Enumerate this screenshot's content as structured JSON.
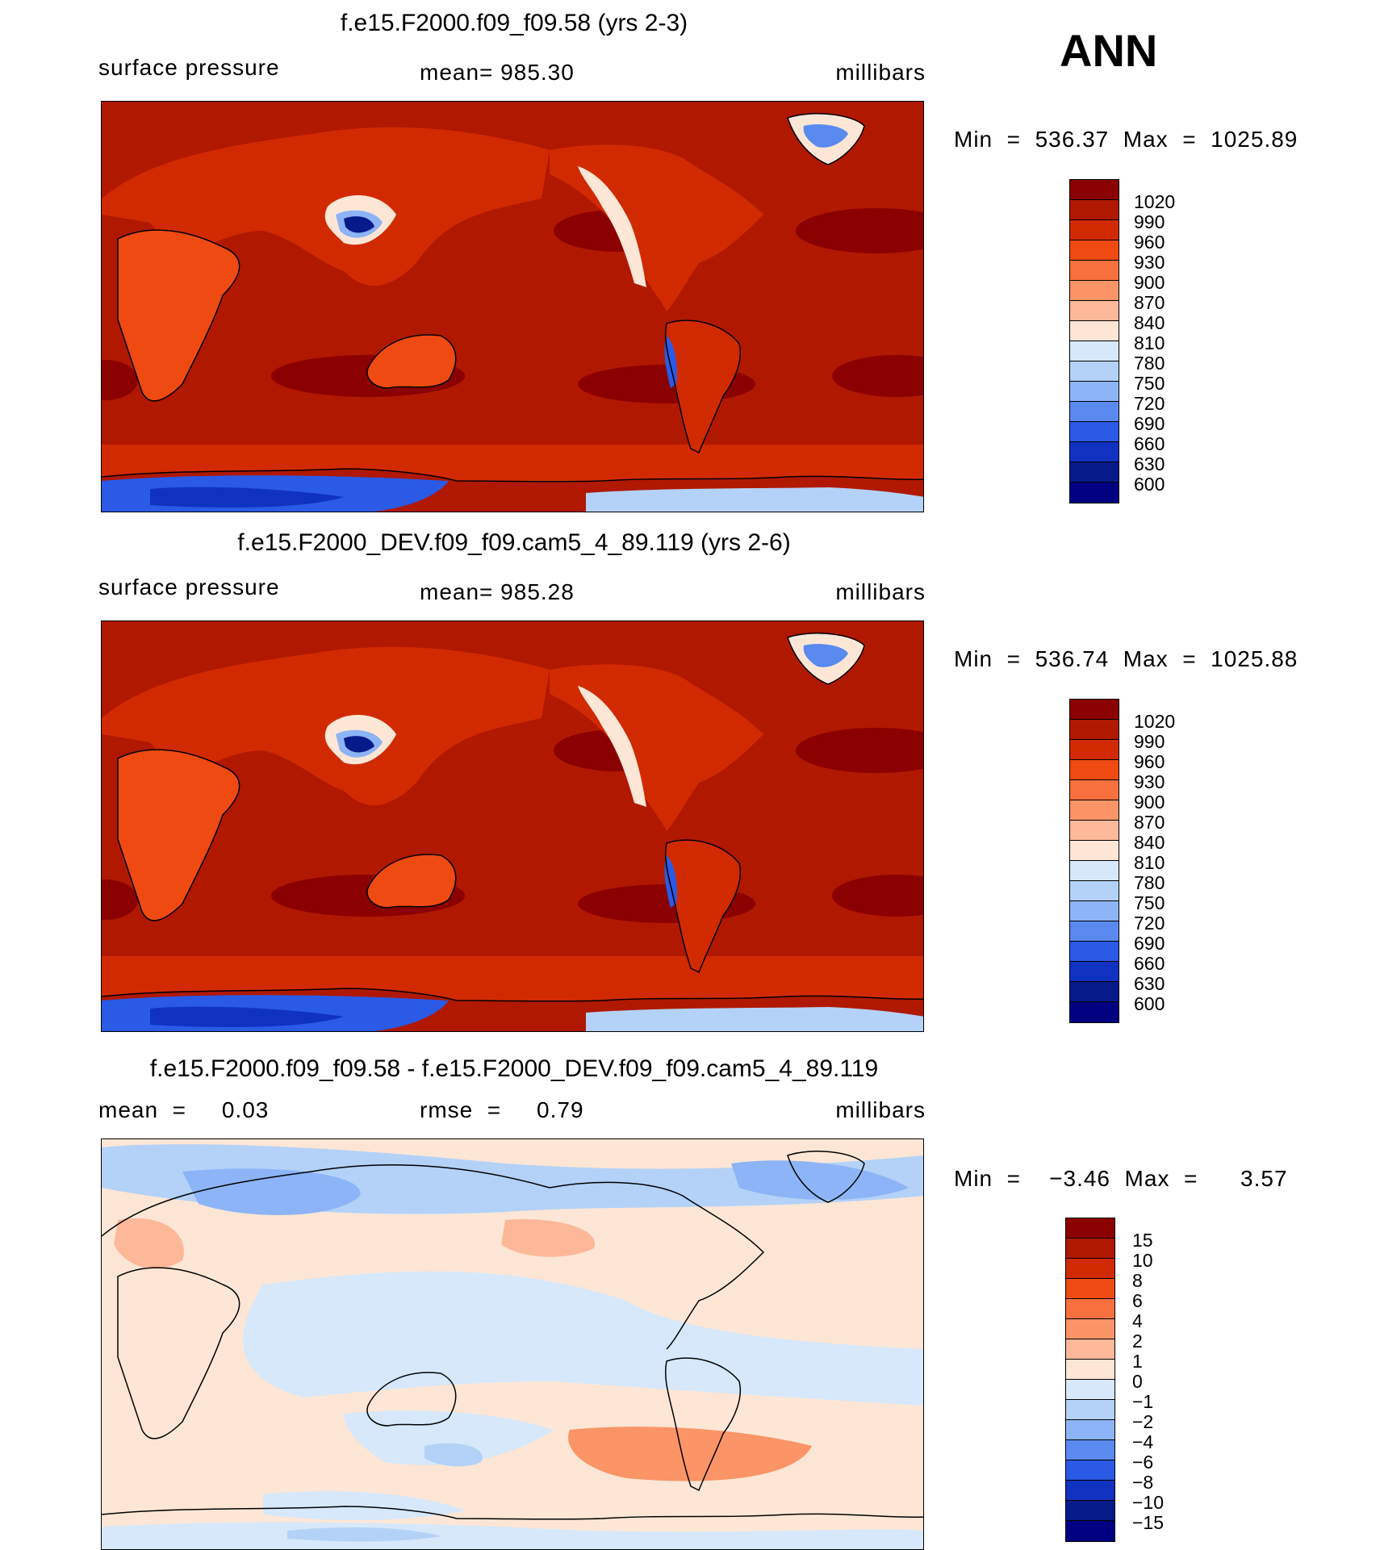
{
  "season": "ANN",
  "panels": [
    {
      "title": "f.e15.F2000.f09_f09.58 (yrs 2-3)",
      "left_label": "surface pressure",
      "center_label": "mean=  985.30",
      "right_label": "millibars",
      "minmax": "Min  =  536.37  Max  =  1025.89"
    },
    {
      "title": "f.e15.F2000_DEV.f09_f09.cam5_4_89.119 (yrs 2-6)",
      "left_label": "surface pressure",
      "center_label": "mean=  985.28",
      "right_label": "millibars",
      "minmax": "Min  =  536.74  Max  =  1025.88"
    },
    {
      "title": "f.e15.F2000.f09_f09.58 - f.e15.F2000_DEV.f09_f09.cam5_4_89.119",
      "left_label": "mean  =     0.03",
      "center_label": "rmse  =     0.79",
      "right_label": "millibars",
      "minmax": "Min  =    −3.46  Max  =      3.57"
    }
  ],
  "colorbars": {
    "pressure": {
      "labels": [
        "1020",
        "990",
        "960",
        "930",
        "900",
        "870",
        "840",
        "810",
        "780",
        "750",
        "720",
        "690",
        "660",
        "630",
        "600"
      ],
      "colors": [
        "#8b0000",
        "#b01800",
        "#d22a00",
        "#ee4a12",
        "#f8703e",
        "#fb9466",
        "#fdb89a",
        "#fde6d6",
        "#d6e8fa",
        "#b4d2f8",
        "#8cb4f6",
        "#5a8af0",
        "#2a5ae6",
        "#1032c0",
        "#061a8a",
        "#000080"
      ]
    },
    "difference": {
      "labels": [
        "15",
        "10",
        "8",
        "6",
        "4",
        "2",
        "1",
        "0",
        "−1",
        "−2",
        "−4",
        "−6",
        "−8",
        "−10",
        "−15"
      ],
      "colors": [
        "#8b0000",
        "#b01800",
        "#d22a00",
        "#ee4a12",
        "#f8703e",
        "#fb9466",
        "#fdb89a",
        "#fde6d6",
        "#d6e8fa",
        "#b4d2f8",
        "#8cb4f6",
        "#5a8af0",
        "#2a5ae6",
        "#1032c0",
        "#061a8a",
        "#000080"
      ]
    }
  }
}
